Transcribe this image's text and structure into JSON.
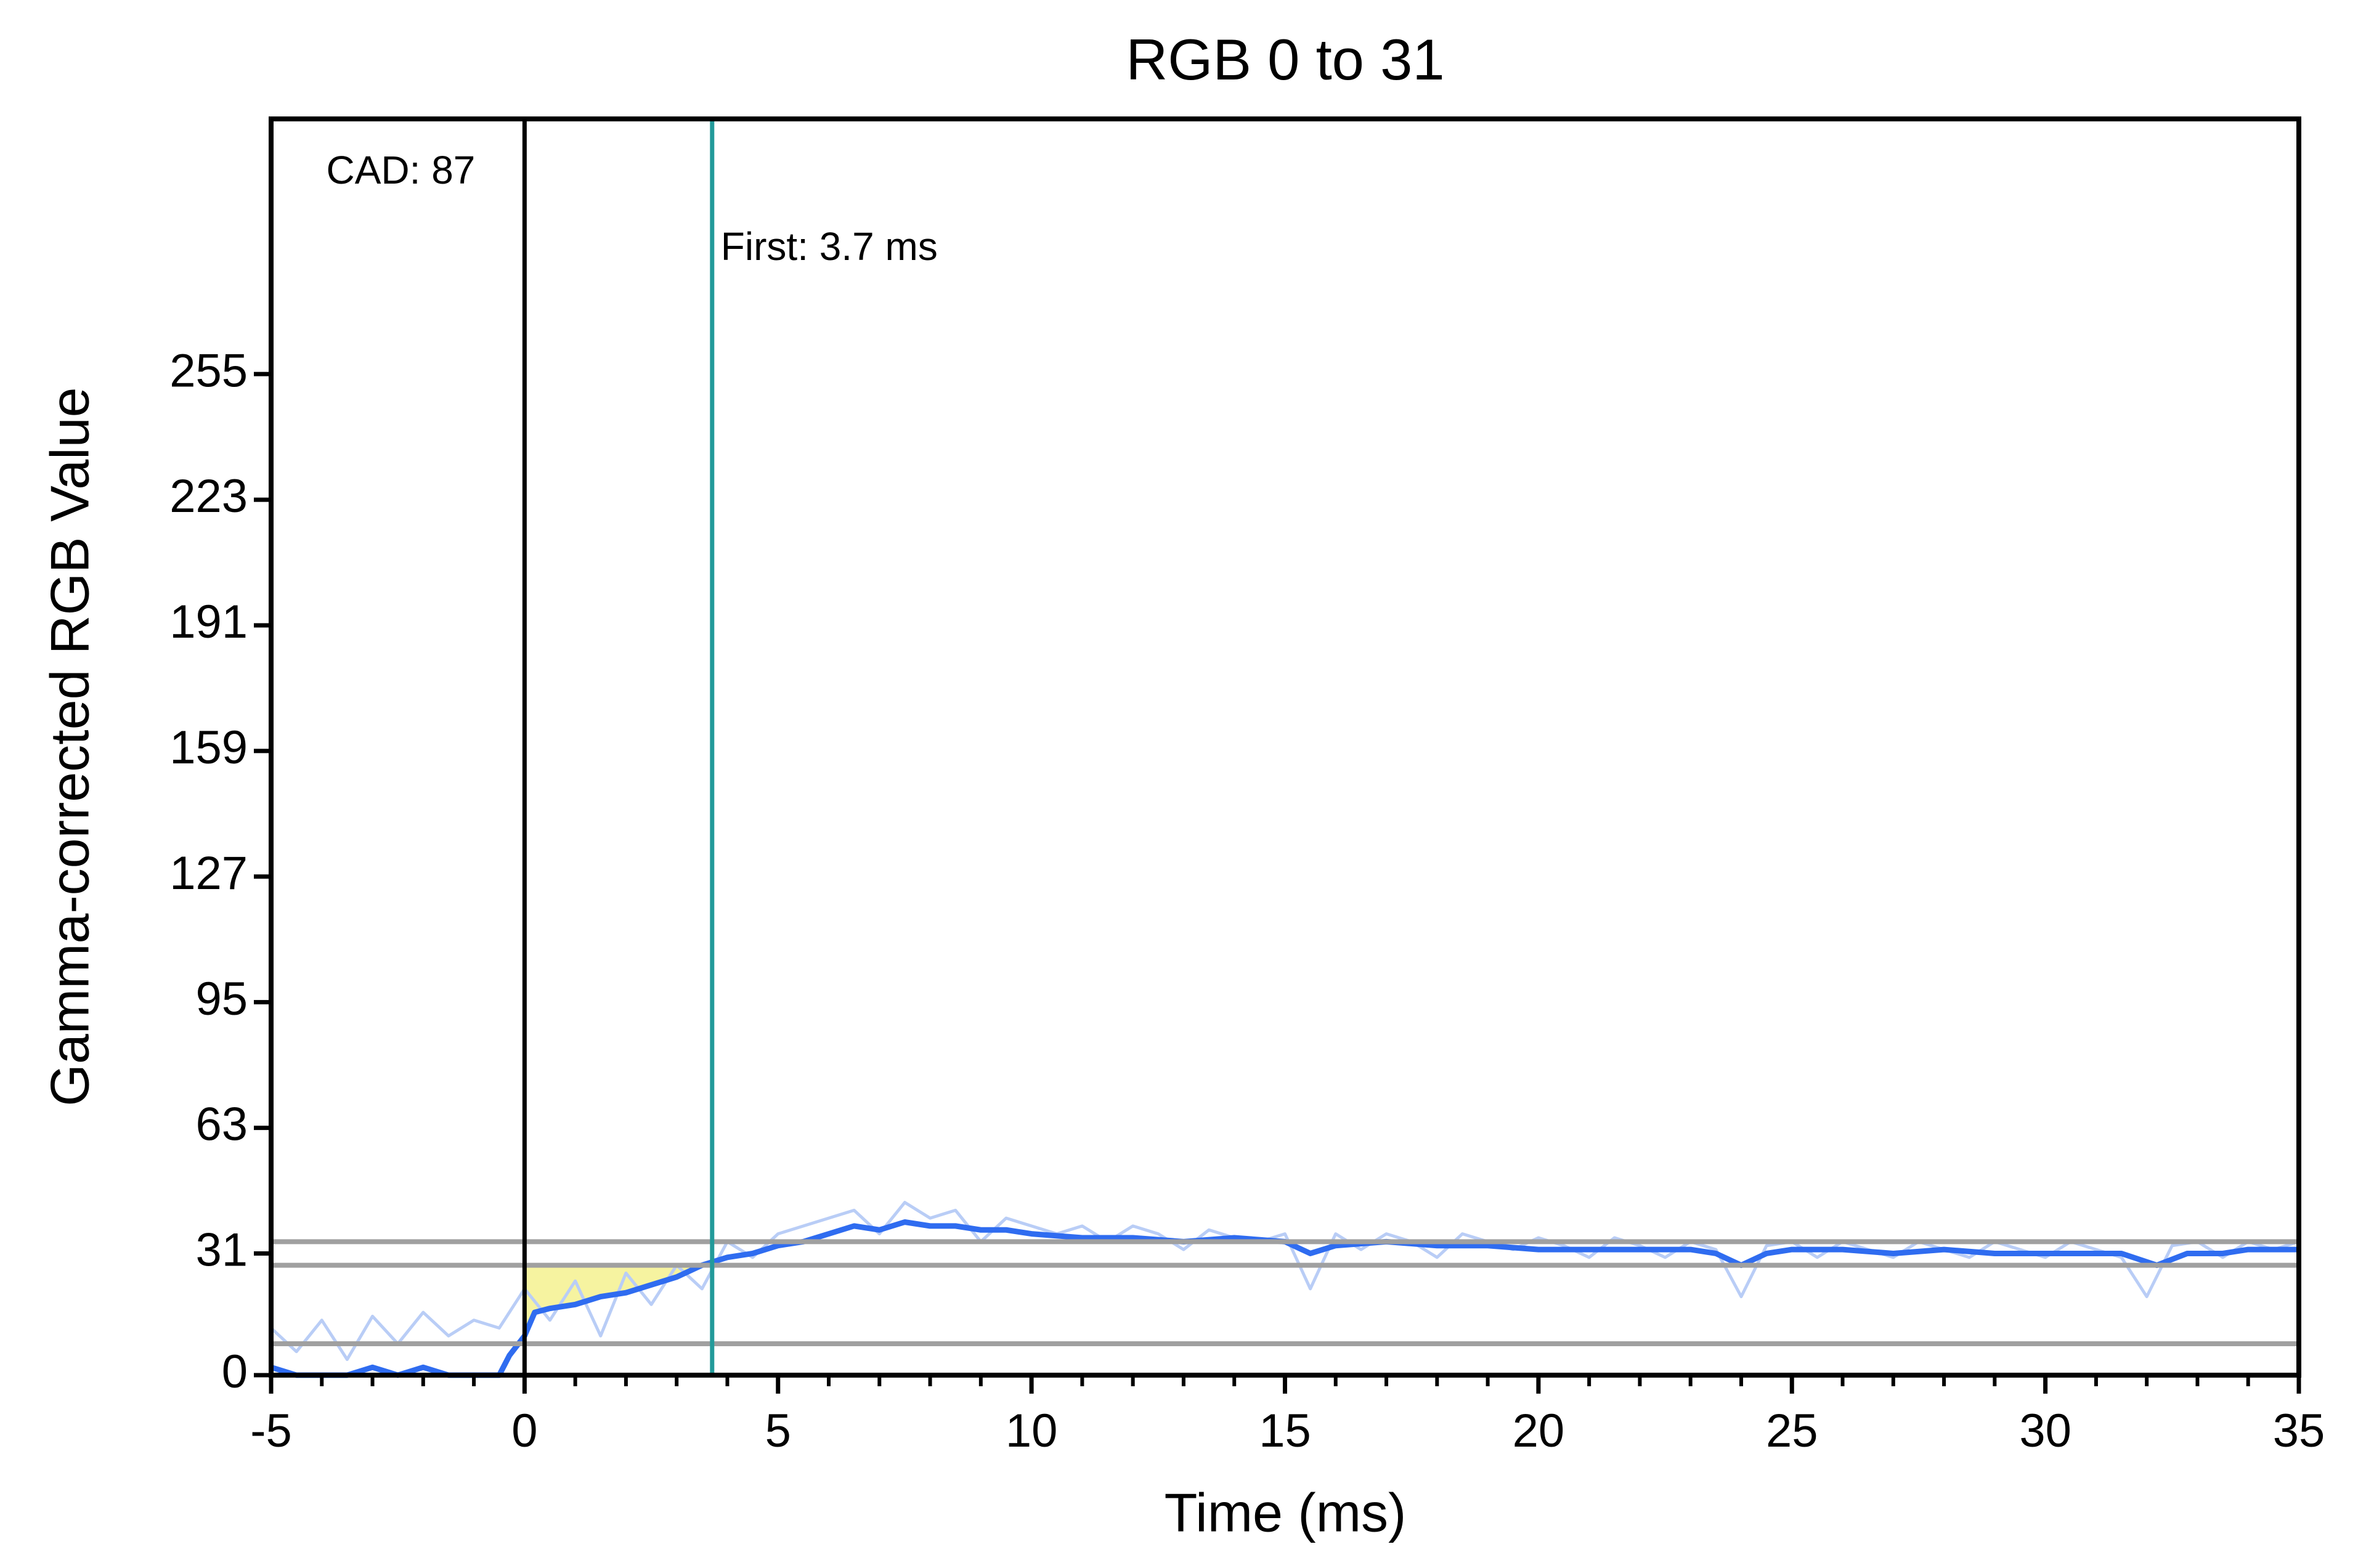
{
  "chart_data": {
    "type": "line",
    "title": "RGB 0 to 31",
    "xlabel": "Time (ms)",
    "ylabel": "Gamma-corrected RGB Value",
    "xlim": [
      -5,
      35
    ],
    "ylim": [
      0,
      320
    ],
    "xticks": [
      -5,
      0,
      5,
      10,
      15,
      20,
      25,
      30,
      35
    ],
    "xminorticks": [
      -5,
      -4,
      -3,
      -2,
      -1,
      0,
      1,
      2,
      3,
      4,
      5,
      6,
      7,
      8,
      9,
      10,
      11,
      12,
      13,
      14,
      15,
      16,
      17,
      18,
      19,
      20,
      21,
      22,
      23,
      24,
      25,
      26,
      27,
      28,
      29,
      30,
      31,
      32,
      33,
      34,
      35
    ],
    "yticks": [
      0,
      31,
      63,
      95,
      127,
      159,
      191,
      223,
      255
    ],
    "hlines": [
      34,
      28,
      8
    ],
    "hline_color": "#a0a0a0",
    "vlines": [
      {
        "x": 0,
        "color": "#000000"
      },
      {
        "x": 3.7,
        "color": "#229a9a"
      }
    ],
    "shade": {
      "from": 0,
      "to": 3.7,
      "level": 28,
      "color": "#f6f3a0"
    },
    "annotations": [
      "CAD: 87",
      "First: 3.7 ms"
    ],
    "series": [
      {
        "color": "#b9cdf6",
        "x": [
          -5,
          -4.5,
          -4,
          -3.5,
          -3,
          -2.5,
          -2,
          -1.5,
          -1,
          -0.5,
          0,
          0.5,
          1,
          1.5,
          2,
          2.5,
          3,
          3.5,
          4,
          4.5,
          5,
          5.5,
          6,
          6.5,
          7,
          7.5,
          8,
          8.5,
          9,
          9.5,
          10,
          10.5,
          11,
          11.5,
          12,
          12.5,
          13,
          13.5,
          14,
          14.5,
          15,
          15.5,
          16,
          16.5,
          17,
          17.5,
          18,
          18.5,
          19,
          19.5,
          20,
          20.5,
          21,
          21.5,
          22,
          22.5,
          23,
          23.5,
          24,
          24.5,
          25,
          25.5,
          26,
          26.5,
          27,
          27.5,
          28,
          28.5,
          29,
          29.5,
          30,
          30.5,
          31,
          31.5,
          32,
          32.5,
          33,
          33.5,
          34,
          34.5,
          35
        ],
        "values": [
          12,
          6,
          14,
          4,
          15,
          8,
          16,
          10,
          14,
          12,
          22,
          14,
          24,
          10,
          26,
          18,
          28,
          22,
          34,
          30,
          36,
          38,
          40,
          42,
          36,
          44,
          40,
          42,
          34,
          40,
          38,
          36,
          38,
          34,
          38,
          36,
          32,
          37,
          35,
          34,
          36,
          22,
          36,
          32,
          36,
          34,
          30,
          36,
          34,
          32,
          35,
          33,
          30,
          35,
          33,
          30,
          34,
          32,
          20,
          33,
          34,
          30,
          34,
          32,
          30,
          34,
          32,
          30,
          34,
          32,
          30,
          34,
          32,
          30,
          20,
          33,
          34,
          30,
          34,
          32,
          34
        ]
      },
      {
        "color": "#2f6cf0",
        "x": [
          -5,
          -4.5,
          -4,
          -3.5,
          -3,
          -2.5,
          -2,
          -1.5,
          -1,
          -0.5,
          -0.3,
          0,
          0.2,
          0.5,
          1,
          1.5,
          2,
          2.5,
          3,
          3.5,
          4,
          4.5,
          5,
          5.5,
          6,
          6.5,
          7,
          7.5,
          8,
          8.5,
          9,
          9.5,
          10,
          11,
          12,
          13,
          14,
          15,
          15.5,
          16,
          17,
          18,
          19,
          20,
          21,
          22,
          23,
          23.5,
          24,
          24.5,
          25,
          26,
          27,
          28,
          29,
          30,
          31,
          31.5,
          32.2,
          32.8,
          33.5,
          34,
          35
        ],
        "values": [
          2,
          0,
          0,
          0,
          2,
          0,
          2,
          0,
          0,
          0,
          5,
          10,
          16,
          17,
          18,
          20,
          21,
          23,
          25,
          28,
          30,
          31,
          33,
          34,
          36,
          38,
          37,
          39,
          38,
          38,
          37,
          37,
          36,
          35,
          35,
          34,
          35,
          34,
          31,
          33,
          34,
          33,
          33,
          32,
          32,
          32,
          32,
          31,
          28,
          31,
          32,
          32,
          31,
          32,
          31,
          31,
          31,
          31,
          28,
          31,
          31,
          32,
          32
        ]
      }
    ]
  }
}
